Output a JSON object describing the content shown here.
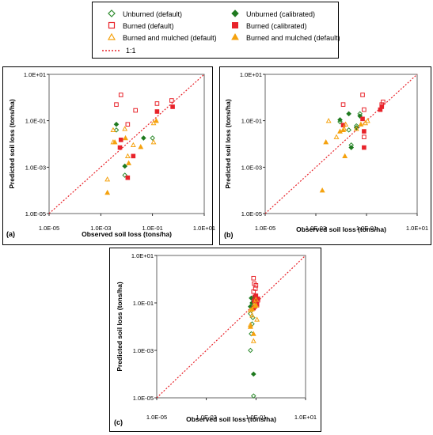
{
  "legend": {
    "items": [
      {
        "label": "Unburned (default)",
        "marker": "diamond",
        "filled": false,
        "color": "#2e8b2e"
      },
      {
        "label": "Unburned (calibrated)",
        "marker": "diamond",
        "filled": true,
        "color": "#1f7a1f"
      },
      {
        "label": "Burned (default)",
        "marker": "square",
        "filled": false,
        "color": "#e8232a"
      },
      {
        "label": "Burned (calibrated)",
        "marker": "square",
        "filled": true,
        "color": "#e8232a"
      },
      {
        "label": "Burned and mulched (default)",
        "marker": "triangle",
        "filled": false,
        "color": "#f5a20f"
      },
      {
        "label": "Burned and mulched (default)",
        "marker": "triangle",
        "filled": true,
        "color": "#f5a20f"
      },
      {
        "label": "1:1",
        "marker": "dotted-line",
        "filled": false,
        "color": "#e8232a"
      }
    ]
  },
  "colors": {
    "oneToOne": "#e8232a",
    "frame": "#666666"
  },
  "chart_data": [
    {
      "type": "scatter",
      "panel_label": "(a)",
      "xlabel": "Observed soil loss (tons/ha)",
      "ylabel": "Predicted soil loss (tons/ha)",
      "x_scale": "log",
      "y_scale": "log",
      "xlim": [
        1e-05,
        10
      ],
      "ylim": [
        1e-05,
        10
      ],
      "x_ticks": [
        "1.0E-05",
        "1.0E-03",
        "1.0E-01",
        "1.0E+01"
      ],
      "y_ticks": [
        "1.0E-05",
        "1.0E-03",
        "1.0E-01",
        "1.0E+01"
      ],
      "grid": false,
      "one_to_one_line": true,
      "series": [
        {
          "name": "Unburned (default)",
          "points": [
            [
              0.004,
              0.04
            ],
            [
              0.0085,
              0.00045
            ],
            [
              0.1,
              0.018
            ]
          ]
        },
        {
          "name": "Unburned (calibrated)",
          "points": [
            [
              0.004,
              0.07
            ],
            [
              0.0085,
              0.0011
            ],
            [
              0.045,
              0.018
            ]
          ]
        },
        {
          "name": "Burned (default)",
          "points": [
            [
              0.006,
              1.3
            ],
            [
              0.004,
              0.5
            ],
            [
              0.022,
              0.28
            ],
            [
              0.011,
              0.07
            ],
            [
              0.15,
              0.55
            ],
            [
              0.55,
              0.75
            ]
          ]
        },
        {
          "name": "Burned (calibrated)",
          "points": [
            [
              0.0055,
              0.007
            ],
            [
              0.006,
              0.015
            ],
            [
              0.018,
              0.003
            ],
            [
              0.011,
              0.00035
            ],
            [
              0.15,
              0.25
            ],
            [
              0.6,
              0.4
            ]
          ]
        },
        {
          "name": "Burned and mulched (default)",
          "points": [
            [
              0.0018,
              0.0003
            ],
            [
              0.003,
              0.04
            ],
            [
              0.003,
              0.012
            ],
            [
              0.0085,
              0.045
            ],
            [
              0.011,
              0.003
            ],
            [
              0.018,
              0.009
            ],
            [
              0.11,
              0.08
            ],
            [
              0.11,
              0.012
            ]
          ]
        },
        {
          "name": "Burned and mulched (default)",
          "points": [
            [
              0.0018,
              8e-05
            ],
            [
              0.0035,
              0.012
            ],
            [
              0.009,
              0.018
            ],
            [
              0.012,
              0.0015
            ],
            [
              0.035,
              0.0075
            ],
            [
              0.14,
              0.1
            ]
          ]
        }
      ]
    },
    {
      "type": "scatter",
      "panel_label": "(b)",
      "xlabel": "Observed soil loss (tons/ha)",
      "ylabel": "Predicted soil loss (tons/ha)",
      "x_scale": "log",
      "y_scale": "log",
      "xlim": [
        1e-05,
        10
      ],
      "ylim": [
        1e-05,
        10
      ],
      "x_ticks": [
        "1.0E-05",
        "1.0E-03",
        "1.0E-01",
        "1.0E+01"
      ],
      "y_ticks": [
        "1.0E-05",
        "1.0E-03",
        "1.0E-01",
        "1.0E+01"
      ],
      "grid": false,
      "one_to_one_line": true,
      "series": [
        {
          "name": "Unburned (default)",
          "points": [
            [
              0.009,
              0.09
            ],
            [
              0.02,
              0.04
            ],
            [
              0.025,
              0.009
            ],
            [
              0.04,
              0.06
            ],
            [
              0.055,
              0.2
            ]
          ]
        },
        {
          "name": "Unburned (calibrated)",
          "points": [
            [
              0.009,
              0.11
            ],
            [
              0.02,
              0.2
            ],
            [
              0.025,
              0.007
            ],
            [
              0.04,
              0.05
            ],
            [
              0.055,
              0.16
            ]
          ]
        },
        {
          "name": "Burned (default)",
          "points": [
            [
              0.012,
              0.5
            ],
            [
              0.07,
              1.3
            ],
            [
              0.08,
              0.3
            ],
            [
              0.08,
              0.02
            ],
            [
              0.4,
              0.5
            ],
            [
              0.45,
              0.65
            ]
          ]
        },
        {
          "name": "Burned (calibrated)",
          "points": [
            [
              0.012,
              0.065
            ],
            [
              0.07,
              0.12
            ],
            [
              0.08,
              0.007
            ],
            [
              0.08,
              0.035
            ],
            [
              0.35,
              0.3
            ],
            [
              0.4,
              0.4
            ]
          ]
        },
        {
          "name": "Burned and mulched (default)",
          "points": [
            [
              0.0032,
              0.1
            ],
            [
              0.0065,
              0.02
            ],
            [
              0.013,
              0.045
            ],
            [
              0.015,
              0.07
            ],
            [
              0.04,
              0.045
            ],
            [
              0.09,
              0.08
            ],
            [
              0.11,
              0.1
            ]
          ]
        },
        {
          "name": "Burned and mulched (default)",
          "points": [
            [
              0.0018,
              0.0001
            ],
            [
              0.0025,
              0.012
            ],
            [
              0.009,
              0.035
            ],
            [
              0.012,
              0.04
            ],
            [
              0.014,
              0.003
            ],
            [
              0.06,
              0.07
            ]
          ]
        }
      ]
    },
    {
      "type": "scatter",
      "panel_label": "(c)",
      "xlabel": "Observed soil loss (tons/ha)",
      "ylabel": "Predicted soil loss (tons/ha)",
      "x_scale": "log",
      "y_scale": "log",
      "xlim": [
        1e-05,
        10
      ],
      "ylim": [
        1e-05,
        10
      ],
      "x_ticks": [
        "1.0E-05",
        "1.0E-03",
        "1.0E-01",
        "1.0E+01"
      ],
      "y_ticks": [
        "1.0E-05",
        "1.0E-03",
        "1.0E-01",
        "1.0E+01"
      ],
      "grid": false,
      "one_to_one_line": true,
      "series": [
        {
          "name": "Unburned (default)",
          "points": [
            [
              0.06,
              0.001
            ],
            [
              0.065,
              0.005
            ],
            [
              0.07,
              0.013
            ],
            [
              0.075,
              0.024
            ],
            [
              0.08,
              1.2e-05
            ],
            [
              0.06,
              0.035
            ]
          ]
        },
        {
          "name": "Unburned (calibrated)",
          "points": [
            [
              0.06,
              0.07
            ],
            [
              0.065,
              0.16
            ],
            [
              0.07,
              0.1
            ],
            [
              0.075,
              0.055
            ],
            [
              0.08,
              0.0001
            ],
            [
              0.085,
              0.18
            ]
          ]
        },
        {
          "name": "Burned (default)",
          "points": [
            [
              0.08,
              1.1
            ],
            [
              0.08,
              0.3
            ],
            [
              0.085,
              0.65
            ],
            [
              0.09,
              0.18
            ],
            [
              0.095,
              0.4
            ],
            [
              0.1,
              0.55
            ],
            [
              0.11,
              0.08
            ],
            [
              0.12,
              0.13
            ]
          ]
        },
        {
          "name": "Burned (calibrated)",
          "points": [
            [
              0.08,
              0.06
            ],
            [
              0.085,
              0.12
            ],
            [
              0.09,
              0.07
            ],
            [
              0.1,
              0.2
            ],
            [
              0.11,
              0.09
            ],
            [
              0.12,
              0.15
            ]
          ]
        },
        {
          "name": "Burned and mulched (default)",
          "points": [
            [
              0.06,
              0.012
            ],
            [
              0.06,
              0.05
            ],
            [
              0.07,
              0.03
            ],
            [
              0.08,
              0.0025
            ],
            [
              0.09,
              0.1
            ],
            [
              0.11,
              0.02
            ],
            [
              0.1,
              0.14
            ]
          ]
        },
        {
          "name": "Burned and mulched (default)",
          "points": [
            [
              0.06,
              0.01
            ],
            [
              0.07,
              0.055
            ],
            [
              0.08,
              0.005
            ],
            [
              0.09,
              0.075
            ],
            [
              0.1,
              0.08
            ]
          ]
        }
      ]
    }
  ]
}
